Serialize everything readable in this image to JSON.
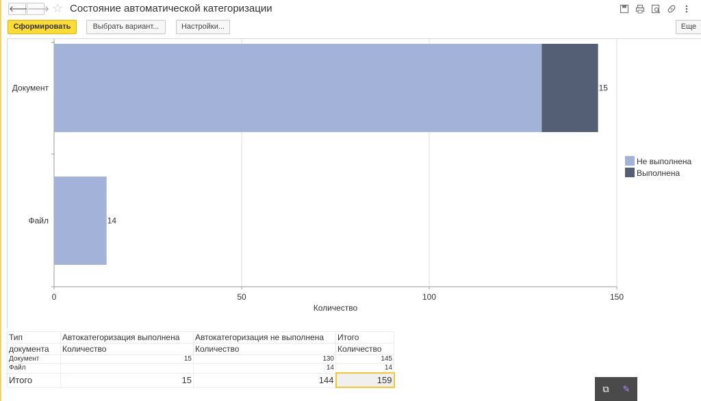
{
  "window": {
    "title": "Состояние автоматической категоризации",
    "nav_back": "🡐",
    "nav_forward": "🡒",
    "star": "☆",
    "icons": [
      "save-icon",
      "print-icon",
      "preview-icon",
      "link-icon",
      "more-vertical-icon"
    ]
  },
  "toolbar": {
    "generate_label": "Сформировать",
    "select_variant_label": "Выбрать вариант...",
    "settings_label": "Настройки...",
    "more_label": "Еще"
  },
  "chart_data": {
    "type": "bar",
    "orientation": "horizontal",
    "stacked": true,
    "categories": [
      "Документ",
      "Файл"
    ],
    "series": [
      {
        "name": "Не выполнена",
        "values": [
          130,
          14
        ],
        "color": "#a2b2d9"
      },
      {
        "name": "Выполнена",
        "values": [
          15,
          0
        ],
        "color": "#545e75"
      }
    ],
    "xlabel": "Количество",
    "ylabel": "",
    "xlim": [
      0,
      150
    ],
    "ticks": [
      0,
      50,
      100,
      150
    ],
    "grid": true,
    "legend": "right"
  },
  "table": {
    "header": {
      "type_label": "Тип документа",
      "done_label": "Автокатегоризация выполнена",
      "not_done_label": "Автокатегоризация не выполнена",
      "total_label": "Итого",
      "quantity_label": "Количество"
    },
    "rows": [
      {
        "type": "Документ",
        "done": "15",
        "not_done": "130",
        "total": "145"
      },
      {
        "type": "Файл",
        "done": "",
        "not_done": "14",
        "total": "14"
      }
    ],
    "totals": {
      "label": "Итого",
      "done": "15",
      "not_done": "144",
      "total": "159"
    }
  },
  "float_panel": {
    "copy_icon": "⧉",
    "pen_icon": "✎"
  }
}
